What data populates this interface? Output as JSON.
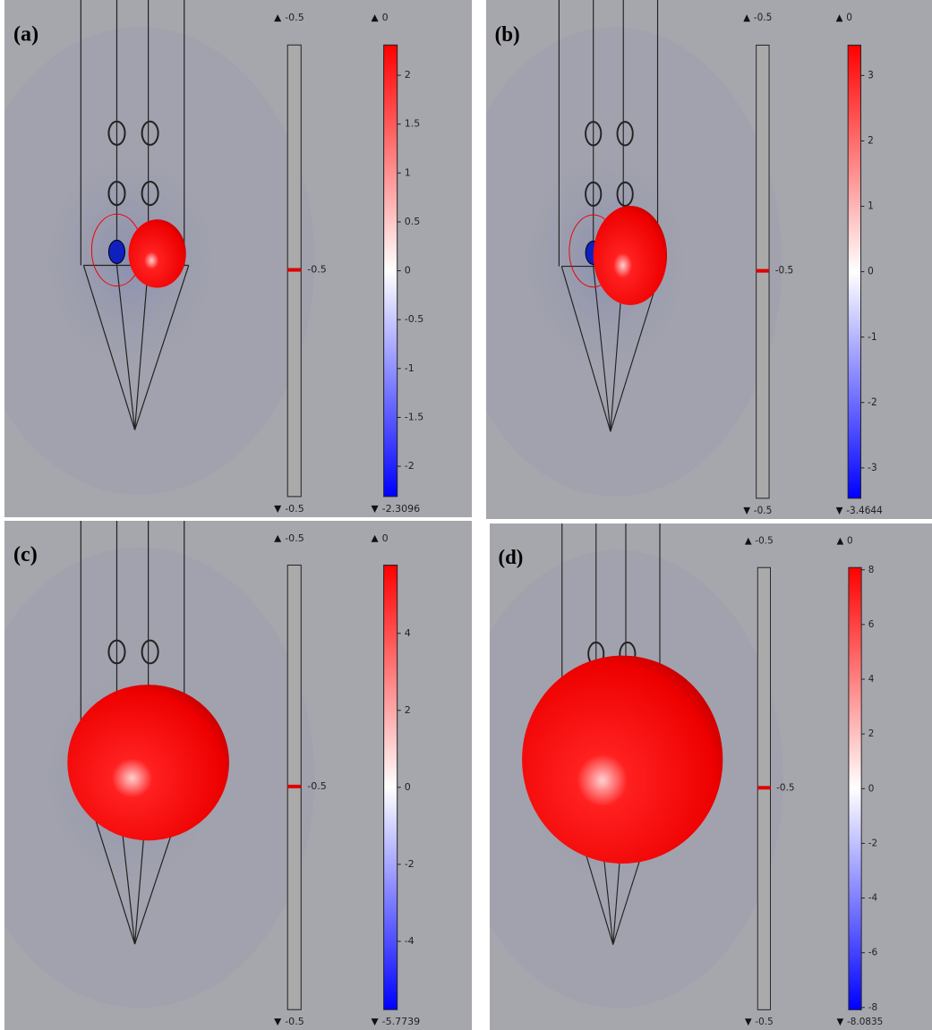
{
  "panels": [
    {
      "label": "(a)",
      "iso_bar": {
        "top_label": -0.5,
        "marker_label": -0.5,
        "bottom_label": -0.5
      },
      "color_bar": {
        "top_label": 0,
        "bottom_label": -2.3096,
        "ticks": [
          2,
          1.5,
          1,
          0.5,
          0,
          -0.5,
          -1,
          -1.5,
          -2
        ]
      }
    },
    {
      "label": "(b)",
      "iso_bar": {
        "top_label": -0.5,
        "marker_label": -0.5,
        "bottom_label": -0.5
      },
      "color_bar": {
        "top_label": 0,
        "bottom_label": -3.4644,
        "ticks": [
          3,
          2,
          1,
          0,
          -1,
          -2,
          -3
        ]
      }
    },
    {
      "label": "(c)",
      "iso_bar": {
        "top_label": -0.5,
        "marker_label": -0.5,
        "bottom_label": -0.5
      },
      "color_bar": {
        "top_label": 0,
        "bottom_label": -5.7739,
        "ticks": [
          4,
          2,
          0,
          -2,
          -4
        ]
      }
    },
    {
      "label": "(d)",
      "iso_bar": {
        "top_label": -0.5,
        "marker_label": -0.5,
        "bottom_label": -0.5
      },
      "color_bar": {
        "top_label": 0,
        "bottom_label": -8.0835,
        "ticks": [
          8,
          6,
          4,
          2,
          0,
          -2,
          -4,
          -6,
          -8
        ]
      }
    }
  ]
}
